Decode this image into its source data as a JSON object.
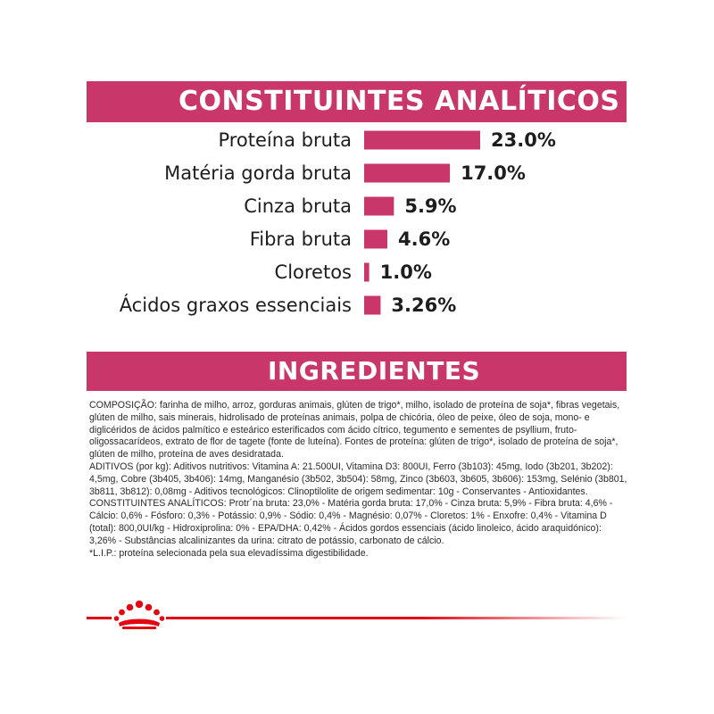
{
  "headings": {
    "analytics": "CONSTITUINTES ANALÍTICOS",
    "ingredients": "INGREDIENTES"
  },
  "colors": {
    "brand_pink": "#c9366a",
    "royal_red": "#e30613",
    "text": "#1d1d1d"
  },
  "chart_data": {
    "type": "bar",
    "title": "CONSTITUINTES ANALÍTICOS",
    "categories": [
      "Proteína bruta",
      "Matéria gorda bruta",
      "Cinza bruta",
      "Fibra bruta",
      "Cloretos",
      "Ácidos graxos essenciais"
    ],
    "values": [
      23.0,
      17.0,
      5.9,
      4.6,
      1.0,
      3.26
    ],
    "value_labels": [
      "23.0%",
      "17.0%",
      "5.9%",
      "4.6%",
      "1.0%",
      "3.26%"
    ],
    "unit": "%",
    "xlabel": "",
    "ylabel": "",
    "xlim": [
      0,
      23.0
    ],
    "orientation": "horizontal",
    "grid": false,
    "legend": "none"
  },
  "ingredients_text": {
    "composicao": "COMPOSIÇÃO: farinha de milho, arroz, gorduras animais, glúten de trigo*, milho, isolado de proteína de soja*, fibras vegetais, glúten de milho, sais minerais, hidrolisado de proteínas animais, polpa de chicória, óleo de peixe, óleo de soja, mono- e diglicéridos de ácidos palmítico e esteárico esterificados com ácido cítrico, tegumento e sementes de psyllium, fruto-oligossacarídeos, extrato de flor de tagete (fonte de luteína). Fontes de proteína: glúten de trigo*, isolado de proteína de soja*, glúten de milho, proteína de aves desidratada.",
    "aditivos": "ADITIVOS (por kg): Aditivos nutritivos: Vitamina A: 21.500UI, Vitamina D3: 800UI, Ferro (3b103): 45mg, Iodo (3b201, 3b202): 4,5mg, Cobre (3b405, 3b406): 14mg, Manganésio (3b502, 3b504): 58mg, Zinco (3b603, 3b605, 3b606): 153mg, Selénio (3b801, 3b811, 3b812): 0,08mg - Aditivos tecnológicos: Clinoptilolite de origem sedimentar: 10g - Conservantes - Antioxidantes.",
    "constituintes": "CONSTITUINTES ANALÍTICOS: Protr´na bruta: 23,0% - Matéria gorda bruta: 17,0% - Cinza bruta: 5,9% - Fibra bruta: 4,6% - Cálcio: 0,6% - Fósforo: 0,3% - Potássio: 0,9% - Sódio: 0,4% - Magnésio: 0,07% - Cloretos: 1% - Enxofre: 0,4% - Vitamina D (total): 800,0UI/kg - Hidroxiprolina: 0% - EPA/DHA: 0,42% - Ácidos gordos essenciais (ácido linoleico, ácido araquidónico): 3,26% - Substâncias alcalinizantes da urina: citrato de potássio, carbonato de cálcio.",
    "lip": "*L.I.P.: proteína selecionada pela sua elevadíssima digestibilidade."
  },
  "footer": {
    "logo_icon": "royal-crown-icon"
  }
}
